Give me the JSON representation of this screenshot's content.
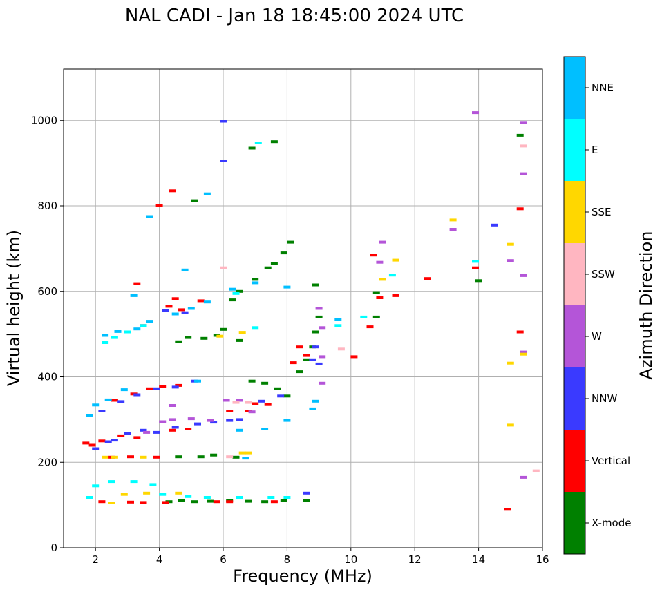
{
  "chart_data": {
    "type": "scatter",
    "title": "NAL CADI - Jan 18 18:45:00 2024 UTC",
    "xlabel": "Frequency (MHz)",
    "ylabel": "Virtual height (km)",
    "xlim": [
      1,
      16
    ],
    "ylim": [
      0,
      1120
    ],
    "xticks": [
      2,
      4,
      6,
      8,
      10,
      12,
      14,
      16
    ],
    "yticks": [
      0,
      200,
      400,
      600,
      800,
      1000
    ],
    "grid": true,
    "colorbar": {
      "label": "Azimuth Direction",
      "categories": [
        {
          "name": "X-mode",
          "color": "#008000"
        },
        {
          "name": "Vertical",
          "color": "#ff0000"
        },
        {
          "name": "NNW",
          "color": "#3a3aff"
        },
        {
          "name": "W",
          "color": "#b455d8"
        },
        {
          "name": "SSW",
          "color": "#ffb6c1"
        },
        {
          "name": "SSE",
          "color": "#ffd700"
        },
        {
          "name": "E",
          "color": "#00ffff"
        },
        {
          "name": "NNE",
          "color": "#00bfff"
        }
      ]
    },
    "series": [
      {
        "name": "X-mode",
        "points": [
          [
            4.3,
            108
          ],
          [
            4.7,
            110
          ],
          [
            5.1,
            108
          ],
          [
            5.6,
            109
          ],
          [
            6.2,
            110
          ],
          [
            6.8,
            109
          ],
          [
            7.3,
            108
          ],
          [
            7.9,
            110
          ],
          [
            8.6,
            110
          ],
          [
            4.6,
            213
          ],
          [
            5.3,
            213
          ],
          [
            5.7,
            217
          ],
          [
            6.4,
            212
          ],
          [
            6.9,
            390
          ],
          [
            7.3,
            385
          ],
          [
            7.7,
            372
          ],
          [
            8.0,
            355
          ],
          [
            8.4,
            412
          ],
          [
            8.6,
            440
          ],
          [
            8.8,
            470
          ],
          [
            8.9,
            505
          ],
          [
            9.0,
            540
          ],
          [
            8.9,
            615
          ],
          [
            5.4,
            490
          ],
          [
            5.8,
            497
          ],
          [
            6.0,
            511
          ],
          [
            6.5,
            485
          ],
          [
            4.6,
            482
          ],
          [
            4.9,
            492
          ],
          [
            7.0,
            628
          ],
          [
            7.4,
            655
          ],
          [
            7.6,
            665
          ],
          [
            7.9,
            690
          ],
          [
            8.1,
            715
          ],
          [
            6.5,
            600
          ],
          [
            6.3,
            580
          ],
          [
            10.8,
            597
          ],
          [
            10.8,
            540
          ],
          [
            14.0,
            625
          ],
          [
            15.3,
            965
          ],
          [
            6.9,
            935
          ],
          [
            7.6,
            950
          ],
          [
            5.1,
            812
          ]
        ]
      },
      {
        "name": "Vertical",
        "points": [
          [
            2.2,
            108
          ],
          [
            3.1,
            107
          ],
          [
            3.5,
            106
          ],
          [
            4.2,
            106
          ],
          [
            5.8,
            108
          ],
          [
            6.2,
            108
          ],
          [
            7.6,
            108
          ],
          [
            2.5,
            212
          ],
          [
            3.1,
            213
          ],
          [
            3.9,
            212
          ],
          [
            1.7,
            245
          ],
          [
            2.2,
            250
          ],
          [
            2.8,
            262
          ],
          [
            3.3,
            258
          ],
          [
            1.9,
            240
          ],
          [
            4.4,
            275
          ],
          [
            4.9,
            278
          ],
          [
            2.6,
            345
          ],
          [
            3.2,
            360
          ],
          [
            3.7,
            372
          ],
          [
            4.1,
            378
          ],
          [
            4.6,
            380
          ],
          [
            6.2,
            320
          ],
          [
            6.8,
            320
          ],
          [
            7.0,
            337
          ],
          [
            7.4,
            335
          ],
          [
            4.3,
            565
          ],
          [
            4.5,
            583
          ],
          [
            5.3,
            578
          ],
          [
            4.7,
            557
          ],
          [
            8.4,
            470
          ],
          [
            8.6,
            450
          ],
          [
            8.2,
            433
          ],
          [
            10.1,
            447
          ],
          [
            10.6,
            517
          ],
          [
            10.9,
            585
          ],
          [
            11.4,
            590
          ],
          [
            10.7,
            685
          ],
          [
            12.4,
            630
          ],
          [
            13.9,
            655
          ],
          [
            15.3,
            793
          ],
          [
            15.3,
            505
          ],
          [
            14.9,
            90
          ],
          [
            4.0,
            800
          ],
          [
            4.4,
            835
          ],
          [
            3.3,
            618
          ],
          [
            3.5,
            520
          ]
        ]
      },
      {
        "name": "NNW",
        "points": [
          [
            2.0,
            232
          ],
          [
            2.4,
            248
          ],
          [
            2.6,
            252
          ],
          [
            3.0,
            268
          ],
          [
            3.5,
            275
          ],
          [
            3.9,
            270
          ],
          [
            4.5,
            282
          ],
          [
            5.2,
            290
          ],
          [
            5.7,
            294
          ],
          [
            6.2,
            298
          ],
          [
            6.5,
            300
          ],
          [
            2.2,
            320
          ],
          [
            2.8,
            342
          ],
          [
            3.3,
            358
          ],
          [
            3.9,
            372
          ],
          [
            4.5,
            376
          ],
          [
            5.1,
            390
          ],
          [
            7.2,
            343
          ],
          [
            7.8,
            355
          ],
          [
            8.6,
            128
          ],
          [
            8.9,
            470
          ],
          [
            8.8,
            440
          ],
          [
            9.0,
            430
          ],
          [
            14.5,
            755
          ],
          [
            6.0,
            905
          ],
          [
            6.0,
            998
          ],
          [
            4.2,
            555
          ],
          [
            4.8,
            550
          ]
        ]
      },
      {
        "name": "W",
        "points": [
          [
            3.6,
            270
          ],
          [
            4.1,
            295
          ],
          [
            4.4,
            300
          ],
          [
            5.0,
            302
          ],
          [
            5.6,
            298
          ],
          [
            6.5,
            345
          ],
          [
            6.9,
            318
          ],
          [
            9.0,
            560
          ],
          [
            9.1,
            515
          ],
          [
            9.1,
            447
          ],
          [
            9.1,
            385
          ],
          [
            10.9,
            668
          ],
          [
            11.0,
            715
          ],
          [
            13.2,
            745
          ],
          [
            15.4,
            875
          ],
          [
            15.4,
            995
          ],
          [
            15.4,
            637
          ],
          [
            15.4,
            458
          ],
          [
            15.4,
            165
          ],
          [
            13.9,
            1018
          ],
          [
            15.0,
            672
          ],
          [
            6.1,
            345
          ],
          [
            4.4,
            333
          ]
        ]
      },
      {
        "name": "SSW",
        "points": [
          [
            6.2,
            213
          ],
          [
            6.4,
            340
          ],
          [
            6.8,
            340
          ],
          [
            6.0,
            655
          ],
          [
            9.7,
            465
          ],
          [
            15.4,
            940
          ],
          [
            15.8,
            180
          ]
        ]
      },
      {
        "name": "SSE",
        "points": [
          [
            2.5,
            105
          ],
          [
            2.9,
            125
          ],
          [
            3.6,
            128
          ],
          [
            4.6,
            128
          ],
          [
            2.3,
            212
          ],
          [
            2.6,
            212
          ],
          [
            3.5,
            212
          ],
          [
            6.6,
            222
          ],
          [
            6.8,
            222
          ],
          [
            11.0,
            628
          ],
          [
            11.4,
            673
          ],
          [
            13.2,
            767
          ],
          [
            15.0,
            710
          ],
          [
            15.0,
            432
          ],
          [
            15.0,
            287
          ],
          [
            15.4,
            453
          ],
          [
            6.6,
            504
          ],
          [
            5.9,
            495
          ]
        ]
      },
      {
        "name": "E",
        "points": [
          [
            1.8,
            118
          ],
          [
            2.0,
            145
          ],
          [
            2.5,
            155
          ],
          [
            3.2,
            155
          ],
          [
            3.8,
            148
          ],
          [
            4.1,
            125
          ],
          [
            4.9,
            120
          ],
          [
            5.5,
            118
          ],
          [
            6.5,
            118
          ],
          [
            7.5,
            118
          ],
          [
            8.0,
            118
          ],
          [
            2.3,
            480
          ],
          [
            2.6,
            492
          ],
          [
            3.0,
            505
          ],
          [
            3.5,
            520
          ],
          [
            6.4,
            595
          ],
          [
            7.1,
            947
          ],
          [
            7.0,
            515
          ],
          [
            13.9,
            670
          ],
          [
            9.6,
            520
          ],
          [
            10.4,
            540
          ],
          [
            11.3,
            638
          ]
        ]
      },
      {
        "name": "NNE",
        "points": [
          [
            1.8,
            310
          ],
          [
            2.0,
            334
          ],
          [
            2.4,
            346
          ],
          [
            2.9,
            370
          ],
          [
            2.3,
            497
          ],
          [
            2.7,
            506
          ],
          [
            3.3,
            512
          ],
          [
            3.7,
            530
          ],
          [
            4.5,
            547
          ],
          [
            5.0,
            560
          ],
          [
            5.5,
            575
          ],
          [
            6.3,
            605
          ],
          [
            7.0,
            620
          ],
          [
            8.0,
            610
          ],
          [
            8.9,
            343
          ],
          [
            8.8,
            325
          ],
          [
            8.0,
            298
          ],
          [
            6.5,
            275
          ],
          [
            7.3,
            278
          ],
          [
            3.2,
            590
          ],
          [
            4.8,
            650
          ],
          [
            5.5,
            828
          ],
          [
            3.7,
            775
          ],
          [
            6.7,
            210
          ],
          [
            5.2,
            390
          ],
          [
            9.6,
            535
          ]
        ]
      }
    ]
  }
}
